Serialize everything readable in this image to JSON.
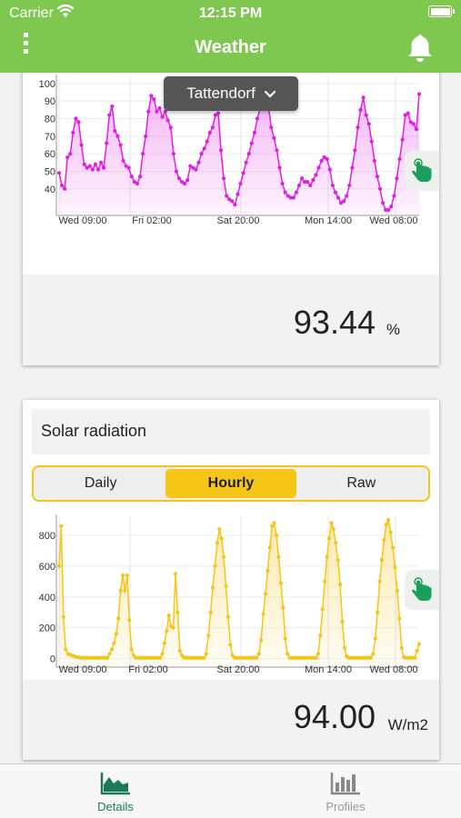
{
  "status": {
    "carrier": "Carrier",
    "time": "12:15 PM"
  },
  "nav": {
    "title": "Weather",
    "menu_icon": "more-vertical-icon",
    "bell_icon": "bell-icon"
  },
  "location": {
    "name": "Tattendorf"
  },
  "colors": {
    "brand": "#7ec850",
    "humidity": "#e020e0",
    "solar": "#f5c518",
    "tab_active": "#1a7a5a"
  },
  "card1": {
    "value": "93.44",
    "unit": "%",
    "chart_data": {
      "type": "line",
      "x_tick_labels": [
        "Wed 09:00",
        "Fri 02:00",
        "Sat 20:00",
        "Mon 14:00",
        "Wed 08:00"
      ],
      "y_ticks": [
        40,
        50,
        60,
        70,
        80,
        90,
        100
      ],
      "ylim": [
        28,
        102
      ],
      "series": [
        {
          "values": [
            49,
            42,
            40,
            58,
            60,
            72,
            80,
            78,
            65,
            54,
            52,
            53,
            51,
            54,
            51,
            55,
            52,
            66,
            82,
            87,
            73,
            70,
            65,
            56,
            53,
            52,
            47,
            44,
            43,
            47,
            60,
            70,
            84,
            93,
            91,
            84,
            86,
            81,
            84,
            79,
            75,
            60,
            50,
            46,
            44,
            43,
            45,
            53,
            52,
            51,
            55,
            60,
            63,
            67,
            72,
            75,
            82,
            83,
            62,
            46,
            36,
            34,
            33,
            31,
            37,
            43,
            49,
            55,
            60,
            66,
            72,
            80,
            86,
            92,
            100,
            87,
            75,
            69,
            62,
            52,
            43,
            38,
            36,
            35,
            35,
            38,
            42,
            46,
            44,
            44,
            42,
            45,
            48,
            52,
            56,
            58,
            57,
            51,
            42,
            38,
            35,
            32,
            33,
            36,
            42,
            52,
            62,
            75,
            85,
            92,
            82,
            77,
            67,
            56,
            47,
            40,
            32,
            28,
            28,
            30,
            36,
            46,
            57,
            68,
            82,
            83,
            78,
            77,
            74,
            94
          ]
        }
      ]
    }
  },
  "card2": {
    "title": "Solar radiation",
    "tabs": [
      "Daily",
      "Hourly",
      "Raw"
    ],
    "active_tab": "Hourly",
    "value": "94.00",
    "unit": "W/m2",
    "chart_data": {
      "type": "area",
      "x_tick_labels": [
        "Wed 09:00",
        "Fri 02:00",
        "Sat 20:00",
        "Mon 14:00",
        "Wed 08:00"
      ],
      "y_ticks": [
        0,
        200,
        400,
        600,
        800
      ],
      "ylim": [
        -20,
        900
      ],
      "series": [
        {
          "values": [
            600,
            860,
            270,
            60,
            30,
            25,
            20,
            15,
            10,
            8,
            5,
            5,
            5,
            5,
            5,
            5,
            5,
            5,
            5,
            5,
            5,
            5,
            5,
            30,
            60,
            100,
            160,
            260,
            440,
            540,
            440,
            540,
            250,
            60,
            20,
            5,
            5,
            5,
            5,
            5,
            5,
            5,
            5,
            5,
            5,
            5,
            5,
            30,
            100,
            180,
            280,
            210,
            200,
            550,
            300,
            50,
            20,
            5,
            5,
            5,
            5,
            5,
            5,
            5,
            5,
            5,
            5,
            30,
            150,
            300,
            460,
            600,
            750,
            840,
            780,
            660,
            470,
            270,
            90,
            20,
            5,
            5,
            5,
            5,
            5,
            5,
            5,
            5,
            5,
            5,
            5,
            30,
            120,
            290,
            420,
            570,
            720,
            860,
            880,
            800,
            660,
            490,
            330,
            130,
            30,
            5,
            5,
            5,
            5,
            5,
            5,
            5,
            5,
            5,
            5,
            5,
            5,
            5,
            30,
            150,
            320,
            500,
            660,
            780,
            880,
            840,
            750,
            640,
            480,
            240,
            70,
            15,
            5,
            5,
            5,
            5,
            5,
            5,
            5,
            5,
            5,
            5,
            5,
            30,
            130,
            300,
            500,
            640,
            770,
            870,
            900,
            820,
            720,
            590,
            440,
            260,
            70,
            10,
            5,
            5,
            5,
            5,
            5,
            50,
            94
          ]
        }
      ]
    }
  },
  "tabbar": {
    "items": [
      {
        "label": "Details",
        "icon": "area-chart-icon",
        "active": true
      },
      {
        "label": "Profiles",
        "icon": "bar-chart-icon",
        "active": false
      }
    ]
  }
}
